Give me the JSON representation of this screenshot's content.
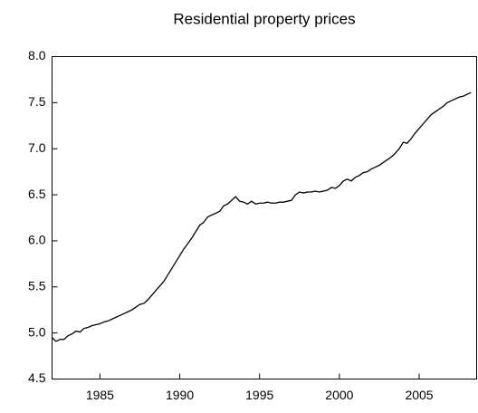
{
  "chart_data": {
    "type": "line",
    "title": "Residential property prices",
    "x": [
      1982,
      1982.25,
      1982.5,
      1982.75,
      1983,
      1983.25,
      1983.5,
      1983.75,
      1984,
      1984.25,
      1984.5,
      1984.75,
      1985,
      1985.25,
      1985.5,
      1985.75,
      1986,
      1986.25,
      1986.5,
      1986.75,
      1987,
      1987.25,
      1987.5,
      1987.75,
      1988,
      1988.25,
      1988.5,
      1988.75,
      1989,
      1989.25,
      1989.5,
      1989.75,
      1990,
      1990.25,
      1990.5,
      1990.75,
      1991,
      1991.25,
      1991.5,
      1991.75,
      1992,
      1992.25,
      1992.5,
      1992.75,
      1993,
      1993.25,
      1993.5,
      1993.75,
      1994,
      1994.25,
      1994.5,
      1994.75,
      1995,
      1995.25,
      1995.5,
      1995.75,
      1996,
      1996.25,
      1996.5,
      1996.75,
      1997,
      1997.25,
      1997.5,
      1997.75,
      1998,
      1998.25,
      1998.5,
      1998.75,
      1999,
      1999.25,
      1999.5,
      1999.75,
      2000,
      2000.25,
      2000.5,
      2000.75,
      2001,
      2001.25,
      2001.5,
      2001.75,
      2002,
      2002.25,
      2002.5,
      2002.75,
      2003,
      2003.25,
      2003.5,
      2003.75,
      2004,
      2004.25,
      2004.5,
      2004.75,
      2005,
      2005.25,
      2005.5,
      2005.75,
      2006,
      2006.25,
      2006.5,
      2006.75,
      2007,
      2007.25,
      2007.5,
      2007.75,
      2008,
      2008.25
    ],
    "y": [
      4.95,
      4.91,
      4.93,
      4.93,
      4.97,
      4.99,
      5.02,
      5.01,
      5.05,
      5.06,
      5.08,
      5.09,
      5.1,
      5.12,
      5.13,
      5.15,
      5.17,
      5.19,
      5.21,
      5.23,
      5.25,
      5.28,
      5.31,
      5.32,
      5.36,
      5.41,
      5.46,
      5.51,
      5.56,
      5.63,
      5.7,
      5.77,
      5.84,
      5.91,
      5.97,
      6.03,
      6.1,
      6.17,
      6.2,
      6.26,
      6.28,
      6.3,
      6.32,
      6.38,
      6.4,
      6.44,
      6.48,
      6.43,
      6.42,
      6.4,
      6.43,
      6.4,
      6.41,
      6.41,
      6.42,
      6.41,
      6.41,
      6.42,
      6.42,
      6.43,
      6.44,
      6.5,
      6.53,
      6.52,
      6.53,
      6.53,
      6.54,
      6.53,
      6.54,
      6.55,
      6.58,
      6.57,
      6.6,
      6.65,
      6.67,
      6.65,
      6.69,
      6.71,
      6.74,
      6.75,
      6.78,
      6.8,
      6.82,
      6.85,
      6.88,
      6.91,
      6.95,
      7.0,
      7.07,
      7.06,
      7.11,
      7.17,
      7.22,
      7.27,
      7.32,
      7.37,
      7.4,
      7.43,
      7.46,
      7.5,
      7.52,
      7.54,
      7.56,
      7.57,
      7.59,
      7.61
    ],
    "color": "#000000",
    "xlim": [
      1982,
      2008.6
    ],
    "xticks": [
      1985,
      1990,
      1995,
      2000,
      2005
    ],
    "ylim": [
      4.5,
      8.0
    ],
    "yticks": [
      4.5,
      {
        "value": 5,
        "label": "5.0"
      },
      5.5,
      {
        "value": 6,
        "label": "6.0"
      },
      6.5,
      {
        "value": 7,
        "label": "7.0"
      },
      7.5,
      {
        "value": 8,
        "label": "8.0"
      }
    ],
    "grid": false
  }
}
